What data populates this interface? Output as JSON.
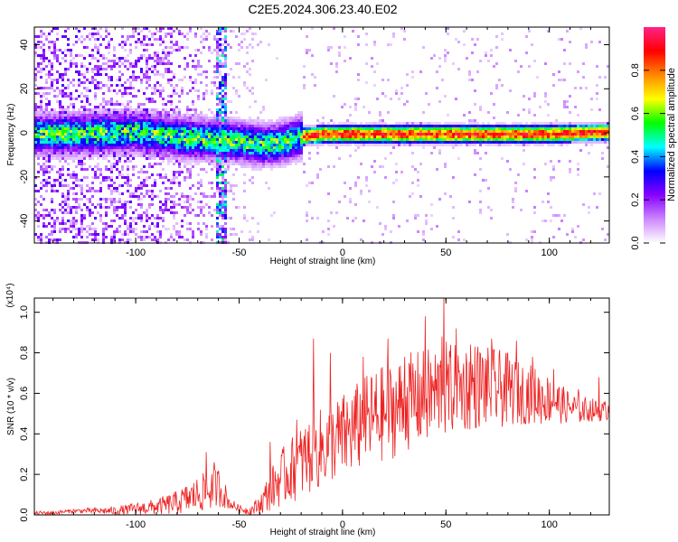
{
  "title": "C2E5.2024.306.23.40.E02",
  "colors": {
    "snr_line": "#ee2222",
    "axis": "#000000",
    "colormap": [
      "#ffffff",
      "#cc88ff",
      "#8800ff",
      "#0000ff",
      "#00ffff",
      "#00ff00",
      "#ffff00",
      "#ff8800",
      "#ff0000",
      "#ff2288"
    ]
  },
  "chart_data": [
    {
      "type": "heatmap",
      "xlabel": "Height of straight line (km)",
      "ylabel": "Frequency (Hz)",
      "xlim": [
        -149,
        129
      ],
      "ylim": [
        -50,
        48
      ],
      "xticks": [
        -100,
        -50,
        0,
        50,
        100
      ],
      "yticks": [
        -40,
        -20,
        0,
        20,
        40
      ],
      "colorbar": {
        "label": "Normalized spectral amplitude",
        "range": [
          0,
          1
        ],
        "ticks": [
          0.0,
          0.2,
          0.4,
          0.6,
          0.8
        ]
      },
      "ridge": {
        "description_points": [
          {
            "x": -130,
            "y": 0
          },
          {
            "x": -100,
            "y": 1
          },
          {
            "x": -75,
            "y": -2
          },
          {
            "x": -55,
            "y": -3
          },
          {
            "x": -40,
            "y": -5
          },
          {
            "x": -30,
            "y": -4
          },
          {
            "x": -20,
            "y": -1
          },
          {
            "x": -10,
            "y": 0
          },
          {
            "x": 0,
            "y": 0
          },
          {
            "x": 50,
            "y": 0
          },
          {
            "x": 100,
            "y": 0
          },
          {
            "x": 129,
            "y": 1
          }
        ]
      }
    },
    {
      "type": "line",
      "xlabel": "Height of straight line (km)",
      "ylabel": "SNR (10 * v/v)",
      "y_multiplier": "(x10⁴)",
      "xlim": [
        -149,
        129
      ],
      "ylim": [
        0,
        1.07
      ],
      "xticks": [
        -100,
        -50,
        0,
        50,
        100
      ],
      "yticks": [
        0.0,
        0.2,
        0.4,
        0.6,
        0.8,
        1.0
      ],
      "series": [
        {
          "envelope": {
            "x": [
              -149,
              -140,
              -130,
              -120,
              -110,
              -100,
              -90,
              -80,
              -70,
              -65,
              -60,
              -57,
              -55,
              -50,
              -45,
              -40,
              -35,
              -30,
              -25,
              -20,
              -15,
              -10,
              -5,
              0,
              5,
              10,
              15,
              20,
              25,
              30,
              35,
              40,
              45,
              50,
              55,
              60,
              65,
              70,
              75,
              80,
              85,
              90,
              95,
              100,
              105,
              110,
              115,
              120,
              125,
              129
            ],
            "baseline": [
              0.01,
              0.01,
              0.02,
              0.02,
              0.02,
              0.03,
              0.04,
              0.06,
              0.1,
              0.12,
              0.14,
              0.1,
              0.06,
              0.03,
              0.02,
              0.05,
              0.12,
              0.18,
              0.22,
              0.26,
              0.3,
              0.33,
              0.36,
              0.38,
              0.42,
              0.45,
              0.48,
              0.5,
              0.52,
              0.55,
              0.57,
              0.58,
              0.6,
              0.62,
              0.62,
              0.63,
              0.64,
              0.63,
              0.62,
              0.62,
              0.6,
              0.6,
              0.58,
              0.57,
              0.55,
              0.53,
              0.52,
              0.52,
              0.51,
              0.52
            ],
            "spread": [
              0.01,
              0.01,
              0.01,
              0.015,
              0.02,
              0.03,
              0.04,
              0.06,
              0.09,
              0.1,
              0.1,
              0.07,
              0.03,
              0.02,
              0.02,
              0.05,
              0.1,
              0.14,
              0.16,
              0.18,
              0.2,
              0.2,
              0.2,
              0.22,
              0.22,
              0.23,
              0.24,
              0.24,
              0.24,
              0.24,
              0.24,
              0.24,
              0.24,
              0.24,
              0.22,
              0.22,
              0.22,
              0.2,
              0.2,
              0.18,
              0.16,
              0.15,
              0.14,
              0.12,
              0.1,
              0.08,
              0.07,
              0.06,
              0.05,
              0.05
            ]
          },
          "peaks": [
            {
              "x": -66,
              "y": 0.31
            },
            {
              "x": -62,
              "y": 0.26
            },
            {
              "x": -35,
              "y": 0.36
            },
            {
              "x": -22,
              "y": 0.47
            },
            {
              "x": -14,
              "y": 0.87
            },
            {
              "x": -6,
              "y": 0.8
            },
            {
              "x": 10,
              "y": 0.78
            },
            {
              "x": 22,
              "y": 0.87
            },
            {
              "x": 30,
              "y": 0.78
            },
            {
              "x": 40,
              "y": 0.98
            },
            {
              "x": 48,
              "y": 0.88
            },
            {
              "x": 49,
              "y": 1.07
            },
            {
              "x": 55,
              "y": 0.92
            },
            {
              "x": 62,
              "y": 0.84
            },
            {
              "x": 72,
              "y": 0.87
            },
            {
              "x": 84,
              "y": 0.86
            },
            {
              "x": 92,
              "y": 0.78
            },
            {
              "x": 102,
              "y": 0.72
            },
            {
              "x": 114,
              "y": 0.62
            },
            {
              "x": 124,
              "y": 0.68
            }
          ]
        }
      ]
    }
  ]
}
